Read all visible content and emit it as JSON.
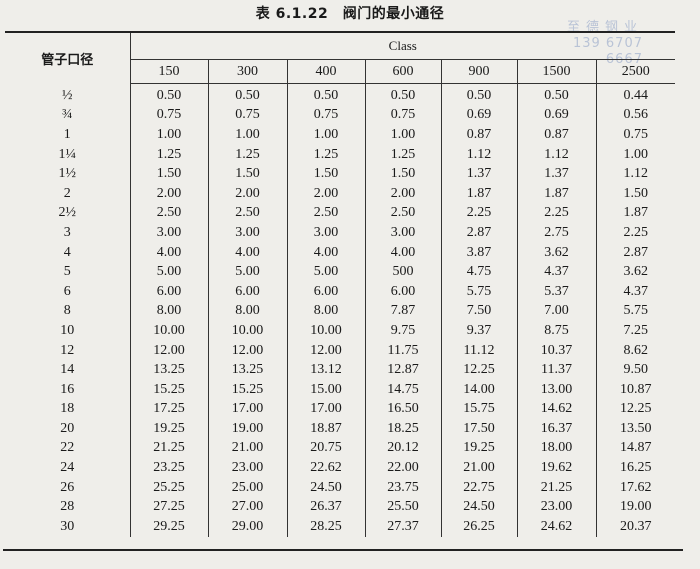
{
  "title": "表 6.1.22　阀门的最小通径",
  "watermark": {
    "line1": "至德钢业",
    "line2": "139 6707 6667"
  },
  "header": {
    "pipe_size": "管子口径",
    "class": "Class",
    "classes": [
      "150",
      "300",
      "400",
      "600",
      "900",
      "1500",
      "2500"
    ]
  },
  "rows": [
    {
      "size": "½",
      "values": [
        "0.50",
        "0.50",
        "0.50",
        "0.50",
        "0.50",
        "0.50",
        "0.44"
      ]
    },
    {
      "size": "¾",
      "values": [
        "0.75",
        "0.75",
        "0.75",
        "0.75",
        "0.69",
        "0.69",
        "0.56"
      ]
    },
    {
      "size": "1",
      "values": [
        "1.00",
        "1.00",
        "1.00",
        "1.00",
        "0.87",
        "0.87",
        "0.75"
      ]
    },
    {
      "size": "1¼",
      "values": [
        "1.25",
        "1.25",
        "1.25",
        "1.25",
        "1.12",
        "1.12",
        "1.00"
      ]
    },
    {
      "size": "1½",
      "values": [
        "1.50",
        "1.50",
        "1.50",
        "1.50",
        "1.37",
        "1.37",
        "1.12"
      ]
    },
    {
      "size": "2",
      "values": [
        "2.00",
        "2.00",
        "2.00",
        "2.00",
        "1.87",
        "1.87",
        "1.50"
      ]
    },
    {
      "size": "2½",
      "values": [
        "2.50",
        "2.50",
        "2.50",
        "2.50",
        "2.25",
        "2.25",
        "1.87"
      ]
    },
    {
      "size": "3",
      "values": [
        "3.00",
        "3.00",
        "3.00",
        "3.00",
        "2.87",
        "2.75",
        "2.25"
      ]
    },
    {
      "size": "4",
      "values": [
        "4.00",
        "4.00",
        "4.00",
        "4.00",
        "3.87",
        "3.62",
        "2.87"
      ]
    },
    {
      "size": "5",
      "values": [
        "5.00",
        "5.00",
        "5.00",
        "500",
        "4.75",
        "4.37",
        "3.62"
      ]
    },
    {
      "size": "6",
      "values": [
        "6.00",
        "6.00",
        "6.00",
        "6.00",
        "5.75",
        "5.37",
        "4.37"
      ]
    },
    {
      "size": "8",
      "values": [
        "8.00",
        "8.00",
        "8.00",
        "7.87",
        "7.50",
        "7.00",
        "5.75"
      ]
    },
    {
      "size": "10",
      "values": [
        "10.00",
        "10.00",
        "10.00",
        "9.75",
        "9.37",
        "8.75",
        "7.25"
      ]
    },
    {
      "size": "12",
      "values": [
        "12.00",
        "12.00",
        "12.00",
        "11.75",
        "11.12",
        "10.37",
        "8.62"
      ]
    },
    {
      "size": "14",
      "values": [
        "13.25",
        "13.25",
        "13.12",
        "12.87",
        "12.25",
        "11.37",
        "9.50"
      ]
    },
    {
      "size": "16",
      "values": [
        "15.25",
        "15.25",
        "15.00",
        "14.75",
        "14.00",
        "13.00",
        "10.87"
      ]
    },
    {
      "size": "18",
      "values": [
        "17.25",
        "17.00",
        "17.00",
        "16.50",
        "15.75",
        "14.62",
        "12.25"
      ]
    },
    {
      "size": "20",
      "values": [
        "19.25",
        "19.00",
        "18.87",
        "18.25",
        "17.50",
        "16.37",
        "13.50"
      ]
    },
    {
      "size": "22",
      "values": [
        "21.25",
        "21.00",
        "20.75",
        "20.12",
        "19.25",
        "18.00",
        "14.87"
      ]
    },
    {
      "size": "24",
      "values": [
        "23.25",
        "23.00",
        "22.62",
        "22.00",
        "21.00",
        "19.62",
        "16.25"
      ]
    },
    {
      "size": "26",
      "values": [
        "25.25",
        "25.00",
        "24.50",
        "23.75",
        "22.75",
        "21.25",
        "17.62"
      ]
    },
    {
      "size": "28",
      "values": [
        "27.25",
        "27.00",
        "26.37",
        "25.50",
        "24.50",
        "23.00",
        "19.00"
      ]
    },
    {
      "size": "30",
      "values": [
        "29.25",
        "29.00",
        "28.25",
        "27.37",
        "26.25",
        "24.62",
        "20.37"
      ]
    }
  ]
}
